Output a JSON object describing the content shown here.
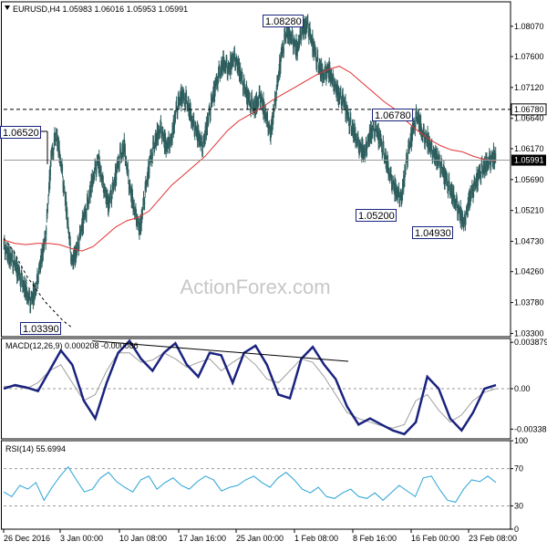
{
  "chart_data": {
    "type": "candlestick",
    "main": {
      "title": "EURUSD,H4",
      "ohlc": [
        "1.05983",
        "1.06016",
        "1.05953",
        "1.05991"
      ],
      "ylim": [
        1.0325,
        1.0845
      ],
      "yticks": [
        "1.08070",
        "1.07600",
        "1.07120",
        "1.06640",
        "1.06170",
        "1.05690",
        "1.05210",
        "1.04730",
        "1.04260",
        "1.03780",
        "1.03300"
      ],
      "current_price": "1.05991",
      "hline_price": "1.06780",
      "callouts": [
        {
          "label": "1.08280",
          "value": 1.0828
        },
        {
          "label": "1.06520",
          "value": 1.0652
        },
        {
          "label": "1.06780",
          "value": 1.0678
        },
        {
          "label": "1.05200",
          "value": 1.052
        },
        {
          "label": "1.04930",
          "value": 1.0493
        },
        {
          "label": "1.03390",
          "value": 1.0339
        }
      ],
      "watermark": "ActionForex.com",
      "close_path": [
        1.0465,
        1.045,
        1.044,
        1.042,
        1.04,
        1.038,
        1.0395,
        1.044,
        1.048,
        1.06,
        1.064,
        1.059,
        1.052,
        1.044,
        1.046,
        1.05,
        1.053,
        1.057,
        1.06,
        1.056,
        1.053,
        1.056,
        1.06,
        1.062,
        1.056,
        1.052,
        1.049,
        1.055,
        1.06,
        1.063,
        1.065,
        1.062,
        1.063,
        1.068,
        1.07,
        1.069,
        1.066,
        1.064,
        1.062,
        1.066,
        1.07,
        1.073,
        1.075,
        1.074,
        1.076,
        1.074,
        1.071,
        1.069,
        1.068,
        1.07,
        1.067,
        1.064,
        1.07,
        1.076,
        1.08,
        1.079,
        1.077,
        1.08,
        1.081,
        1.078,
        1.075,
        1.073,
        1.074,
        1.072,
        1.07,
        1.069,
        1.066,
        1.064,
        1.062,
        1.061,
        1.064,
        1.065,
        1.063,
        1.06,
        1.057,
        1.055,
        1.054,
        1.06,
        1.064,
        1.067,
        1.064,
        1.063,
        1.061,
        1.06,
        1.058,
        1.056,
        1.054,
        1.052,
        1.05,
        1.054,
        1.056,
        1.058,
        1.059,
        1.06,
        1.0605
      ],
      "ma_path": [
        1.0475,
        1.047,
        1.0468,
        1.047,
        1.047,
        1.0468,
        1.0462,
        1.0458,
        1.0465,
        1.048,
        1.0495,
        1.0505,
        1.051,
        1.052,
        1.054,
        1.056,
        1.0575,
        1.059,
        1.0605,
        1.0625,
        1.0645,
        1.066,
        1.067,
        1.068,
        1.0692,
        1.0702,
        1.0712,
        1.0722,
        1.0732,
        1.074,
        1.0745,
        1.0735,
        1.072,
        1.0705,
        1.069,
        1.0678,
        1.066,
        1.0645,
        1.0632,
        1.0622,
        1.0615,
        1.0612,
        1.0605,
        1.06,
        1.0598
      ],
      "dotted_path": [
        [
          0,
          1.0478
        ],
        [
          10,
          1.046
        ],
        [
          25,
          1.042
        ],
        [
          45,
          1.038
        ],
        [
          65,
          1.035
        ],
        [
          75,
          1.0339
        ]
      ]
    },
    "macd": {
      "title": "MACD(12,26,9) 0.000208 -0.000086",
      "ylim": [
        -0.0042,
        0.0042
      ],
      "yticks": [
        "0.003879",
        "0.00",
        "-0.003387"
      ],
      "main_path": [
        0.0,
        0.0003,
        0.0001,
        -0.0002,
        0.0015,
        0.0032,
        0.002,
        -0.001,
        -0.0025,
        0.0005,
        0.003,
        0.004,
        0.0025,
        0.0015,
        0.003,
        0.0038,
        0.002,
        0.001,
        0.003,
        0.0028,
        0.0005,
        0.003,
        0.0036,
        0.002,
        -0.0005,
        -0.0008,
        0.0025,
        0.0035,
        0.002,
        0.0008,
        -0.0015,
        -0.003,
        -0.0025,
        -0.003,
        -0.0035,
        -0.0038,
        -0.0028,
        0.001,
        0.0,
        -0.0025,
        -0.0035,
        -0.002,
        0.0,
        0.0003
      ],
      "signal_path": [
        0.0002,
        0.0002,
        0.0,
        0.0005,
        0.0015,
        0.002,
        0.0005,
        -0.001,
        -0.0005,
        0.0015,
        0.003,
        0.003,
        0.0022,
        0.0024,
        0.003,
        0.0025,
        0.0018,
        0.0022,
        0.0025,
        0.0015,
        0.0022,
        0.0028,
        0.002,
        0.0008,
        0.0005,
        0.0015,
        0.0025,
        0.0022,
        0.001,
        -0.0005,
        -0.002,
        -0.0025,
        -0.0028,
        -0.0031,
        -0.0033,
        -0.003,
        -0.001,
        -0.0005,
        -0.0018,
        -0.0028,
        -0.0022,
        -0.001,
        -0.0003,
        0.0
      ],
      "trendline": [
        [
          0.18,
          0.004
        ],
        [
          0.64,
          0.0026
        ]
      ]
    },
    "rsi": {
      "title": "RSI(14) 55.6994",
      "ylim": [
        0,
        100
      ],
      "yticks": [
        "100",
        "70",
        "30",
        "0"
      ],
      "levels": [
        70,
        30
      ],
      "path": [
        45,
        40,
        52,
        48,
        55,
        36,
        50,
        62,
        72,
        58,
        45,
        48,
        60,
        66,
        56,
        50,
        45,
        58,
        62,
        48,
        55,
        60,
        52,
        48,
        56,
        62,
        58,
        46,
        50,
        52,
        58,
        62,
        55,
        50,
        60,
        66,
        58,
        48,
        44,
        50,
        40,
        38,
        44,
        48,
        40,
        38,
        44,
        36,
        44,
        52,
        46,
        40,
        60,
        62,
        48,
        36,
        34,
        48,
        58,
        56,
        62,
        55
      ]
    },
    "xticks": [
      "26 Dec 2016",
      "3 Jan 00:00",
      "10 Jan 08:00",
      "17 Jan 16:00",
      "25 Jan 00:00",
      "1 Feb 08:00",
      "8 Feb 16:00",
      "16 Feb 00:00",
      "23 Feb 08:00"
    ],
    "colors": {
      "candle": "#2e5e5e",
      "ma": "#e03030",
      "macd": "#1a237e",
      "signal": "#9e9e9e",
      "rsi": "#29a3d6",
      "grid": "#9a9a9a",
      "current_box": "#000000"
    }
  }
}
